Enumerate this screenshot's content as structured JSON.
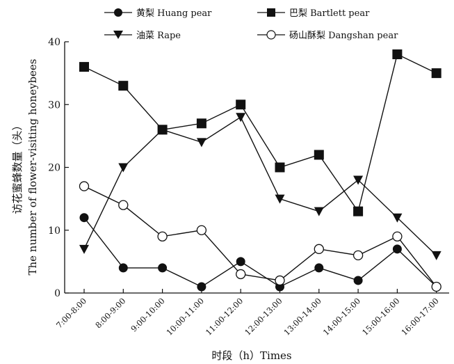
{
  "chart_data": {
    "type": "line",
    "categories": [
      "7:00-8:00",
      "8:00-9:00",
      "9:00-10:00",
      "10:00-11:00",
      "11:00-12:00",
      "12:00-13:00",
      "13:00-14:00",
      "14:00-15:00",
      "15:00-16:00",
      "16:00-17:00"
    ],
    "series": [
      {
        "name": "黄梨 Huang pear",
        "marker": "filled-circle",
        "values": [
          12,
          4,
          4,
          1,
          5,
          1,
          4,
          2,
          7,
          1
        ]
      },
      {
        "name": "巴梨 Bartlett pear",
        "marker": "filled-square",
        "values": [
          36,
          33,
          26,
          27,
          30,
          20,
          22,
          13,
          38,
          35
        ]
      },
      {
        "name": "油菜 Rape",
        "marker": "filled-triangle-down",
        "values": [
          7,
          20,
          26,
          24,
          28,
          15,
          13,
          18,
          12,
          6
        ]
      },
      {
        "name": "砀山酥梨 Dangshan pear",
        "marker": "open-circle",
        "values": [
          17,
          14,
          9,
          10,
          3,
          2,
          7,
          6,
          9,
          1
        ]
      }
    ],
    "xlabel": "时段（h）Times",
    "ylabel_cn": "访花蜜蜂数量（头）",
    "ylabel_en": "The number of flower-visiting honeybees",
    "ylim": [
      0,
      40
    ],
    "yticks": [
      0,
      10,
      20,
      30,
      40
    ],
    "grid": false,
    "legend_position": "top",
    "color": "#111111"
  }
}
